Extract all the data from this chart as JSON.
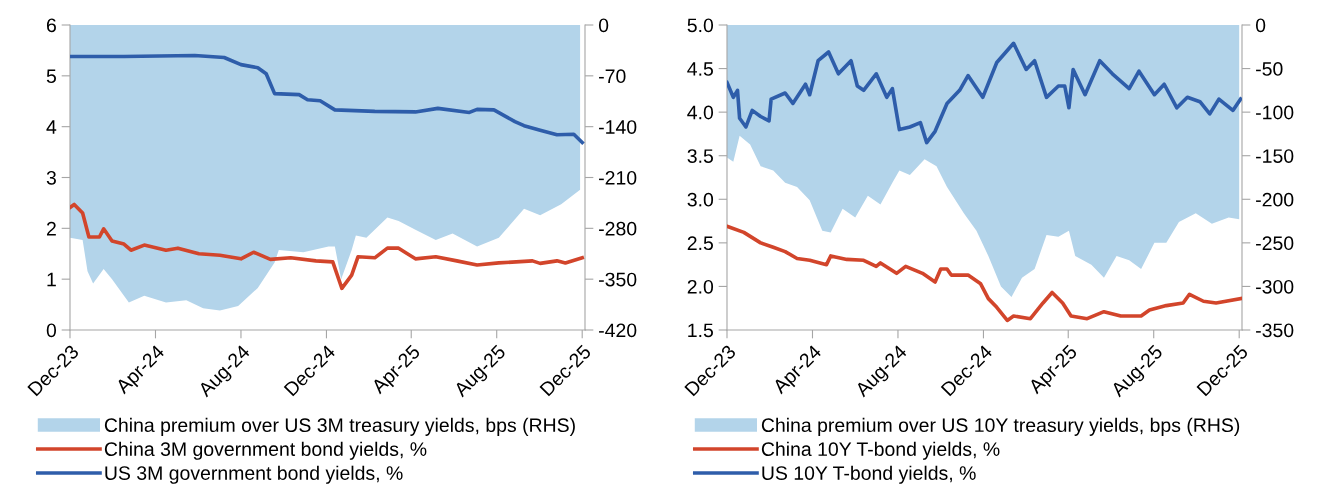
{
  "chart_data": [
    {
      "type": "line",
      "legend": "bottom",
      "grid": false,
      "marker": "none",
      "line_style": "solid",
      "xlim": [
        "2023-12-01",
        "2025-12-05"
      ],
      "xticks": [
        {
          "value": "2023-12-01",
          "label": "Dec-23"
        },
        {
          "value": "2024-04-01",
          "label": "Apr-24"
        },
        {
          "value": "2024-08-01",
          "label": "Aug-24"
        },
        {
          "value": "2024-12-01",
          "label": "Dec-24"
        },
        {
          "value": "2025-04-01",
          "label": "Apr-25"
        },
        {
          "value": "2025-08-01",
          "label": "Aug-25"
        },
        {
          "value": "2025-12-01",
          "label": "Dec-25"
        }
      ],
      "ylim": [
        0,
        6
      ],
      "yticks": [
        0,
        1,
        2,
        3,
        4,
        5,
        6
      ],
      "y2lim": [
        -420,
        0
      ],
      "y2ticks": [
        0,
        -70,
        -140,
        -210,
        -280,
        -350,
        -420
      ],
      "series": [
        {
          "name": "China premium over US 3M treasury yields, bps (RHS)",
          "type": "area",
          "axis": "y2",
          "color": "#b3d4ea",
          "x": [
            "2023-12-01",
            "2023-12-19",
            "2023-12-26",
            "2024-01-03",
            "2024-01-18",
            "2024-01-30",
            "2024-02-23",
            "2024-03-16",
            "2024-04-16",
            "2024-05-15",
            "2024-06-08",
            "2024-07-02",
            "2024-07-28",
            "2024-08-25",
            "2024-09-18",
            "2024-09-24",
            "2024-10-29",
            "2024-12-04",
            "2024-12-13",
            "2024-12-22",
            "2025-01-06",
            "2025-01-12",
            "2025-01-27",
            "2025-02-26",
            "2025-03-14",
            "2025-04-07",
            "2025-05-06",
            "2025-05-30",
            "2025-07-04",
            "2025-08-04",
            "2025-09-09",
            "2025-10-02",
            "2025-11-01",
            "2025-11-28"
          ],
          "values": [
            -293,
            -296,
            -339,
            -356,
            -336,
            -350,
            -382,
            -373,
            -382,
            -379,
            -390,
            -393,
            -387,
            -362,
            -327,
            -310,
            -313,
            -305,
            -305,
            -350,
            -310,
            -290,
            -293,
            -265,
            -270,
            -282,
            -296,
            -287,
            -305,
            -293,
            -253,
            -262,
            -247,
            -227
          ]
        },
        {
          "name": "China 3M government bond yields, %",
          "color": "#d2452b",
          "x": [
            "2023-12-01",
            "2023-12-07",
            "2023-12-19",
            "2023-12-28",
            "2024-01-12",
            "2024-01-18",
            "2024-01-30",
            "2024-02-16",
            "2024-02-26",
            "2024-03-16",
            "2024-04-16",
            "2024-05-03",
            "2024-06-02",
            "2024-07-02",
            "2024-08-01",
            "2024-08-19",
            "2024-09-12",
            "2024-10-11",
            "2024-11-16",
            "2024-12-10",
            "2024-12-23",
            "2025-01-06",
            "2025-01-15",
            "2025-02-08",
            "2025-02-26",
            "2025-03-14",
            "2025-04-07",
            "2025-05-06",
            "2025-06-05",
            "2025-07-04",
            "2025-08-04",
            "2025-09-21",
            "2025-10-02",
            "2025-10-26",
            "2025-11-07",
            "2025-12-01"
          ],
          "values": [
            2.41,
            2.47,
            2.3,
            1.83,
            1.83,
            1.99,
            1.75,
            1.69,
            1.57,
            1.67,
            1.57,
            1.61,
            1.5,
            1.47,
            1.4,
            1.53,
            1.39,
            1.42,
            1.36,
            1.34,
            0.82,
            1.08,
            1.44,
            1.42,
            1.61,
            1.61,
            1.4,
            1.44,
            1.36,
            1.28,
            1.32,
            1.36,
            1.31,
            1.36,
            1.32,
            1.42
          ]
        },
        {
          "name": "US 3M government bond yields, %",
          "color": "#2e5daa",
          "x": [
            "2023-12-01",
            "2024-02-16",
            "2024-05-27",
            "2024-07-08",
            "2024-08-01",
            "2024-08-25",
            "2024-09-06",
            "2024-09-18",
            "2024-10-23",
            "2024-11-04",
            "2024-11-22",
            "2024-12-13",
            "2025-02-08",
            "2025-04-07",
            "2025-05-09",
            "2025-06-23",
            "2025-07-04",
            "2025-07-28",
            "2025-08-27",
            "2025-09-09",
            "2025-10-02",
            "2025-10-26",
            "2025-11-19",
            "2025-12-01"
          ],
          "values": [
            5.38,
            5.38,
            5.4,
            5.36,
            5.22,
            5.16,
            5.04,
            4.65,
            4.63,
            4.53,
            4.51,
            4.33,
            4.3,
            4.29,
            4.36,
            4.28,
            4.34,
            4.33,
            4.1,
            4.02,
            3.93,
            3.84,
            3.85,
            3.69
          ]
        }
      ]
    },
    {
      "type": "line",
      "legend": "bottom",
      "grid": false,
      "marker": "none",
      "line_style": "solid",
      "xlim": [
        "2023-12-01",
        "2025-12-05"
      ],
      "xticks": [
        {
          "value": "2023-12-01",
          "label": "Dec-23"
        },
        {
          "value": "2024-04-01",
          "label": "Apr-24"
        },
        {
          "value": "2024-08-01",
          "label": "Aug-24"
        },
        {
          "value": "2024-12-01",
          "label": "Dec-24"
        },
        {
          "value": "2025-04-01",
          "label": "Apr-25"
        },
        {
          "value": "2025-08-01",
          "label": "Aug-25"
        },
        {
          "value": "2025-12-01",
          "label": "Dec-25"
        }
      ],
      "ylim": [
        1.5,
        5.0
      ],
      "yticks": [
        {
          "value": 1.5,
          "label": "1.5"
        },
        {
          "value": 2.0,
          "label": "2.0"
        },
        {
          "value": 2.5,
          "label": "2.5"
        },
        {
          "value": 3.0,
          "label": "3.0"
        },
        {
          "value": 3.5,
          "label": "3.5"
        },
        {
          "value": 4.0,
          "label": "4.0"
        },
        {
          "value": 4.5,
          "label": "4.5"
        },
        {
          "value": 5.0,
          "label": "5.0"
        }
      ],
      "y2lim": [
        -350,
        0
      ],
      "y2ticks": [
        0,
        -50,
        -100,
        -150,
        -200,
        -250,
        -300,
        -350
      ],
      "series": [
        {
          "name": "China premium over US 10Y treasury yields, bps (RHS)",
          "type": "area",
          "axis": "y2",
          "color": "#b3d4ea",
          "x": [
            "2023-12-01",
            "2023-12-10",
            "2023-12-19",
            "2024-01-03",
            "2024-01-18",
            "2024-02-05",
            "2024-02-22",
            "2024-03-10",
            "2024-03-28",
            "2024-04-15",
            "2024-04-27",
            "2024-05-14",
            "2024-06-01",
            "2024-06-19",
            "2024-07-07",
            "2024-07-24",
            "2024-08-03",
            "2024-08-18",
            "2024-09-08",
            "2024-09-25",
            "2024-10-10",
            "2024-11-03",
            "2024-11-21",
            "2024-12-08",
            "2024-12-26",
            "2025-01-10",
            "2025-01-25",
            "2025-02-12",
            "2025-03-01",
            "2025-03-18",
            "2025-04-02",
            "2025-04-11",
            "2025-05-04",
            "2025-05-22",
            "2025-06-09",
            "2025-06-27",
            "2025-07-14",
            "2025-08-02",
            "2025-08-19",
            "2025-09-06",
            "2025-09-30",
            "2025-10-23",
            "2025-11-16",
            "2025-12-01"
          ],
          "values": [
            -152,
            -157,
            -127,
            -137,
            -162,
            -167,
            -181,
            -186,
            -201,
            -236,
            -238,
            -211,
            -221,
            -196,
            -206,
            -181,
            -167,
            -172,
            -154,
            -162,
            -186,
            -216,
            -236,
            -265,
            -300,
            -312,
            -290,
            -280,
            -241,
            -243,
            -236,
            -265,
            -275,
            -290,
            -265,
            -270,
            -280,
            -250,
            -250,
            -226,
            -216,
            -228,
            -221,
            -223
          ]
        },
        {
          "name": "China 10Y T-bond yields, %",
          "color": "#d2452b",
          "x": [
            "2023-12-01",
            "2023-12-25",
            "2024-01-18",
            "2024-02-05",
            "2024-02-22",
            "2024-03-10",
            "2024-03-28",
            "2024-04-21",
            "2024-04-27",
            "2024-05-20",
            "2024-06-13",
            "2024-07-01",
            "2024-07-07",
            "2024-07-30",
            "2024-08-12",
            "2024-09-05",
            "2024-09-23",
            "2024-10-01",
            "2024-10-10",
            "2024-10-16",
            "2024-11-09",
            "2024-11-27",
            "2024-12-08",
            "2024-12-20",
            "2025-01-04",
            "2025-01-13",
            "2025-02-06",
            "2025-02-24",
            "2025-03-09",
            "2025-03-24",
            "2025-04-05",
            "2025-04-28",
            "2025-05-22",
            "2025-06-15",
            "2025-07-14",
            "2025-07-26",
            "2025-08-19",
            "2025-09-12",
            "2025-09-21",
            "2025-10-11",
            "2025-10-29",
            "2025-12-03"
          ],
          "values": [
            2.69,
            2.62,
            2.5,
            2.45,
            2.4,
            2.32,
            2.3,
            2.25,
            2.35,
            2.31,
            2.3,
            2.23,
            2.27,
            2.15,
            2.23,
            2.15,
            2.05,
            2.2,
            2.2,
            2.13,
            2.13,
            2.03,
            1.86,
            1.76,
            1.61,
            1.66,
            1.63,
            1.81,
            1.93,
            1.81,
            1.66,
            1.63,
            1.71,
            1.66,
            1.66,
            1.73,
            1.78,
            1.81,
            1.91,
            1.83,
            1.81,
            1.86
          ]
        },
        {
          "name": "US 10Y T-bond yields, %",
          "color": "#2e5daa",
          "x": [
            "2023-12-01",
            "2023-12-10",
            "2023-12-16",
            "2023-12-19",
            "2023-12-28",
            "2024-01-06",
            "2024-01-18",
            "2024-01-30",
            "2024-02-02",
            "2024-02-22",
            "2024-03-04",
            "2024-03-22",
            "2024-03-28",
            "2024-04-09",
            "2024-04-24",
            "2024-05-08",
            "2024-05-26",
            "2024-06-04",
            "2024-06-13",
            "2024-07-01",
            "2024-07-16",
            "2024-07-24",
            "2024-08-03",
            "2024-08-18",
            "2024-09-02",
            "2024-09-11",
            "2024-09-23",
            "2024-10-10",
            "2024-10-28",
            "2024-11-09",
            "2024-11-30",
            "2024-12-20",
            "2025-01-13",
            "2025-01-31",
            "2025-02-12",
            "2025-03-01",
            "2025-03-18",
            "2025-03-27",
            "2025-04-02",
            "2025-04-08",
            "2025-04-25",
            "2025-05-16",
            "2025-06-03",
            "2025-06-27",
            "2025-07-11",
            "2025-08-02",
            "2025-08-16",
            "2025-09-03",
            "2025-09-18",
            "2025-10-06",
            "2025-10-20",
            "2025-11-02",
            "2025-11-22",
            "2025-12-03"
          ],
          "values": [
            4.34,
            4.17,
            4.25,
            3.93,
            3.83,
            4.02,
            3.95,
            3.9,
            4.15,
            4.22,
            4.1,
            4.32,
            4.2,
            4.59,
            4.69,
            4.44,
            4.59,
            4.3,
            4.25,
            4.44,
            4.17,
            4.27,
            3.8,
            3.83,
            3.88,
            3.65,
            3.78,
            4.1,
            4.25,
            4.42,
            4.17,
            4.57,
            4.79,
            4.49,
            4.59,
            4.17,
            4.3,
            4.3,
            4.05,
            4.49,
            4.2,
            4.59,
            4.44,
            4.27,
            4.47,
            4.2,
            4.32,
            4.05,
            4.17,
            4.12,
            3.98,
            4.15,
            4.02,
            4.15
          ]
        }
      ]
    }
  ]
}
